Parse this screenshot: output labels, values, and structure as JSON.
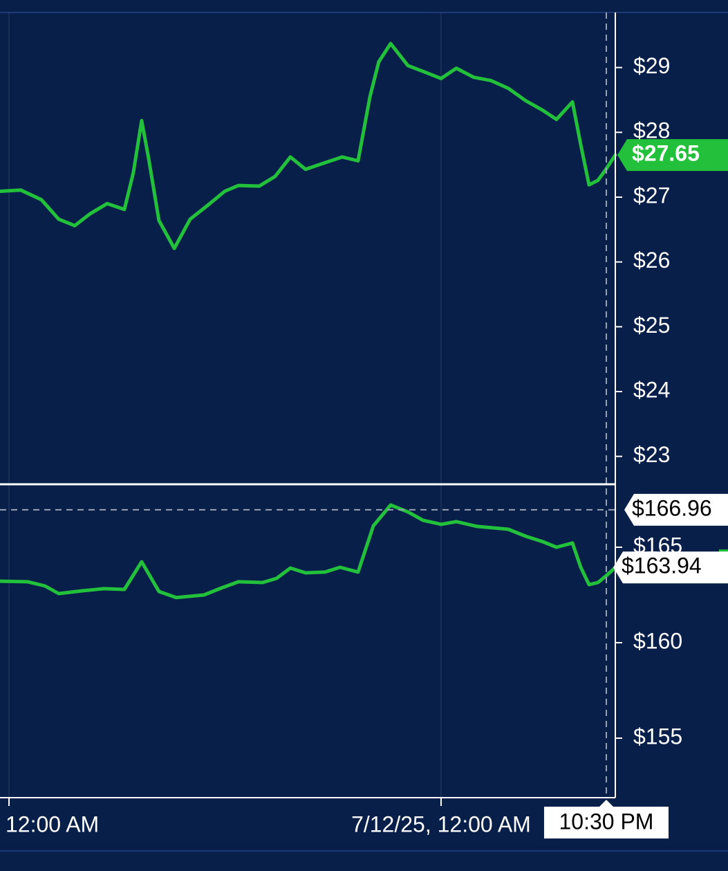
{
  "chart_data": [
    {
      "type": "line",
      "color": "#22c03b",
      "x": [
        -0.5,
        0.65,
        1.8,
        2.76,
        3.65,
        4.49,
        5.45,
        6.41,
        6.91,
        7.37,
        7.76,
        8.33,
        9.18,
        10.06,
        11.02,
        11.98,
        12.75,
        13.9,
        14.78,
        15.63,
        16.47,
        17.55,
        18.51,
        19.39,
        20.05,
        20.54,
        21.2,
        22.16,
        23.0,
        24.0,
        24.85,
        25.81,
        26.77,
        27.73,
        28.69,
        29.65,
        30.41,
        31.3,
        31.76,
        32.22,
        32.72,
        33.18,
        33.68
      ],
      "values": [
        27.09,
        27.11,
        26.96,
        26.66,
        26.56,
        26.74,
        26.9,
        26.81,
        27.38,
        28.18,
        27.59,
        26.64,
        26.21,
        26.66,
        26.87,
        27.09,
        27.18,
        27.17,
        27.32,
        27.62,
        27.43,
        27.53,
        27.62,
        27.56,
        28.55,
        29.09,
        29.37,
        29.03,
        28.94,
        28.83,
        28.99,
        28.85,
        28.8,
        28.68,
        28.49,
        28.34,
        28.2,
        28.47,
        27.81,
        27.19,
        27.26,
        27.44,
        27.65
      ],
      "xlim": [
        -0.5,
        33.68
      ],
      "ylim": [
        22.58,
        29.85
      ],
      "yticks": [
        {
          "value": 23,
          "label": "$23"
        },
        {
          "value": 24,
          "label": "$24"
        },
        {
          "value": 25,
          "label": "$25"
        },
        {
          "value": 26,
          "label": "$26"
        },
        {
          "value": 27,
          "label": "$27"
        },
        {
          "value": 28,
          "label": "$28"
        },
        {
          "value": 29,
          "label": "$29"
        }
      ],
      "grid": true,
      "last_price": {
        "value": 27.65,
        "label": "$27.65"
      }
    },
    {
      "type": "line",
      "color": "#22c03b",
      "x": [
        -0.5,
        1.04,
        2.0,
        2.76,
        4.11,
        5.26,
        6.41,
        7.37,
        8.33,
        9.29,
        10.83,
        11.79,
        12.75,
        14.09,
        14.86,
        15.63,
        16.47,
        17.55,
        18.39,
        19.39,
        20.24,
        21.2,
        22.16,
        23.0,
        24.0,
        24.85,
        26.0,
        27.73,
        28.69,
        29.65,
        30.41,
        31.3,
        31.76,
        32.22,
        32.72,
        33.18,
        33.68
      ],
      "values": [
        163.22,
        163.19,
        162.97,
        162.57,
        162.72,
        162.83,
        162.79,
        164.24,
        162.68,
        162.36,
        162.5,
        162.86,
        163.19,
        163.15,
        163.37,
        163.91,
        163.66,
        163.7,
        163.95,
        163.7,
        166.12,
        167.21,
        166.85,
        166.41,
        166.2,
        166.34,
        166.09,
        165.94,
        165.58,
        165.29,
        165.0,
        165.22,
        163.95,
        163.04,
        163.15,
        163.51,
        163.94
      ],
      "xlim": [
        -0.5,
        33.68
      ],
      "ylim": [
        151.92,
        168.26
      ],
      "yticks": [
        {
          "value": 155,
          "label": "$155"
        },
        {
          "value": 160,
          "label": "$160"
        },
        {
          "value": 165,
          "label": "$165"
        }
      ],
      "grid": true,
      "xticks": [
        {
          "value": 0,
          "label": "12:00 AM"
        },
        {
          "value": 24,
          "label": "7/12/25, 12:00 AM"
        }
      ],
      "crosshair": {
        "value": 166.96,
        "label": "$166.96"
      },
      "crosshair_x": {
        "value": 33.18,
        "label": "10:30 PM"
      },
      "last_price": {
        "value": 163.94,
        "label": "$163.94"
      }
    }
  ]
}
